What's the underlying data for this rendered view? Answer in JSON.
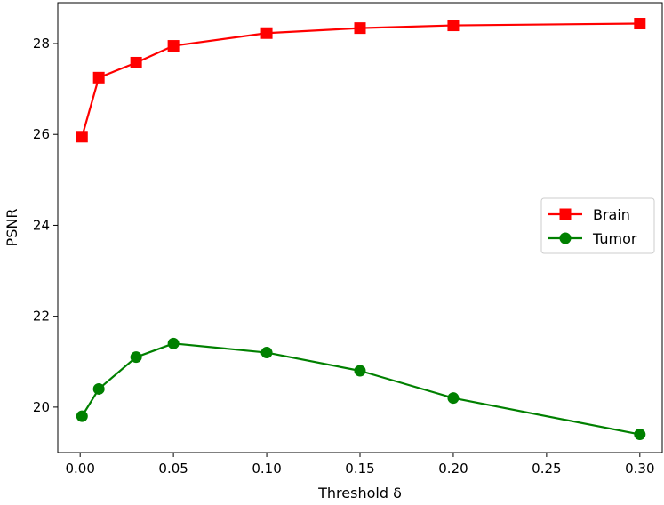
{
  "chart_data": {
    "type": "line",
    "title": "",
    "xlabel": "Threshold δ",
    "ylabel": "PSNR",
    "xlim": [
      -0.012,
      0.312
    ],
    "ylim": [
      19.0,
      28.9
    ],
    "xticks": [
      "0.00",
      "0.05",
      "0.10",
      "0.15",
      "0.20",
      "0.25",
      "0.30"
    ],
    "xtick_values": [
      0.0,
      0.05,
      0.1,
      0.15,
      0.2,
      0.25,
      0.3
    ],
    "yticks": [
      "20",
      "22",
      "24",
      "26",
      "28"
    ],
    "ytick_values": [
      20,
      22,
      24,
      26,
      28
    ],
    "grid": false,
    "legend_position": "center-right",
    "x": [
      0.001,
      0.01,
      0.03,
      0.05,
      0.1,
      0.15,
      0.2,
      0.3
    ],
    "series": [
      {
        "name": "Brain",
        "color": "#ff0000",
        "marker": "square",
        "values": [
          25.95,
          27.25,
          27.58,
          27.95,
          28.23,
          28.34,
          28.4,
          28.44
        ]
      },
      {
        "name": "Tumor",
        "color": "#008000",
        "marker": "circle",
        "values": [
          19.8,
          20.4,
          21.1,
          21.4,
          21.2,
          20.8,
          20.2,
          19.4
        ]
      }
    ]
  }
}
